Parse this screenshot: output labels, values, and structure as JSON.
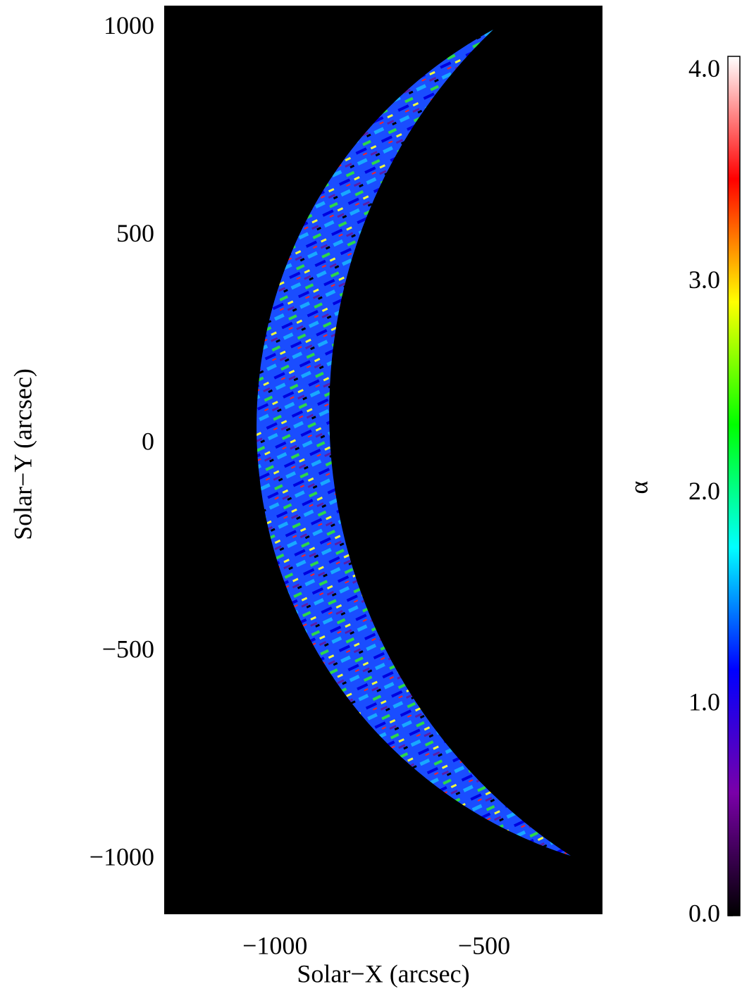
{
  "chart_data": {
    "type": "heatmap",
    "xlabel": "Solar−X (arcsec)",
    "ylabel": "Solar−Y (arcsec)",
    "xlim": [
      -1265,
      -217
    ],
    "ylim": [
      -1132,
      1054
    ],
    "xticks": [
      {
        "value": -1000,
        "label": "−1000"
      },
      {
        "value": -500,
        "label": "−500"
      }
    ],
    "yticks": [
      {
        "value": -1000,
        "label": "−1000"
      },
      {
        "value": -500,
        "label": "−500"
      },
      0,
      500,
      1000
    ],
    "colorbar": {
      "label": "α",
      "clim": [
        0,
        4.07
      ],
      "ticks": [
        {
          "value": 0,
          "label": "0.0"
        },
        {
          "value": 1,
          "label": "1.0"
        },
        {
          "value": 2,
          "label": "2.0"
        },
        {
          "value": 3,
          "label": "3.0"
        },
        {
          "value": 4,
          "label": "4.0"
        }
      ],
      "colormap": [
        "#000000",
        "#7a00a8",
        "#0000ff",
        "#00ffff",
        "#00ff00",
        "#ffff00",
        "#ff0000",
        "#ffffff"
      ]
    },
    "background": "#000000"
  }
}
